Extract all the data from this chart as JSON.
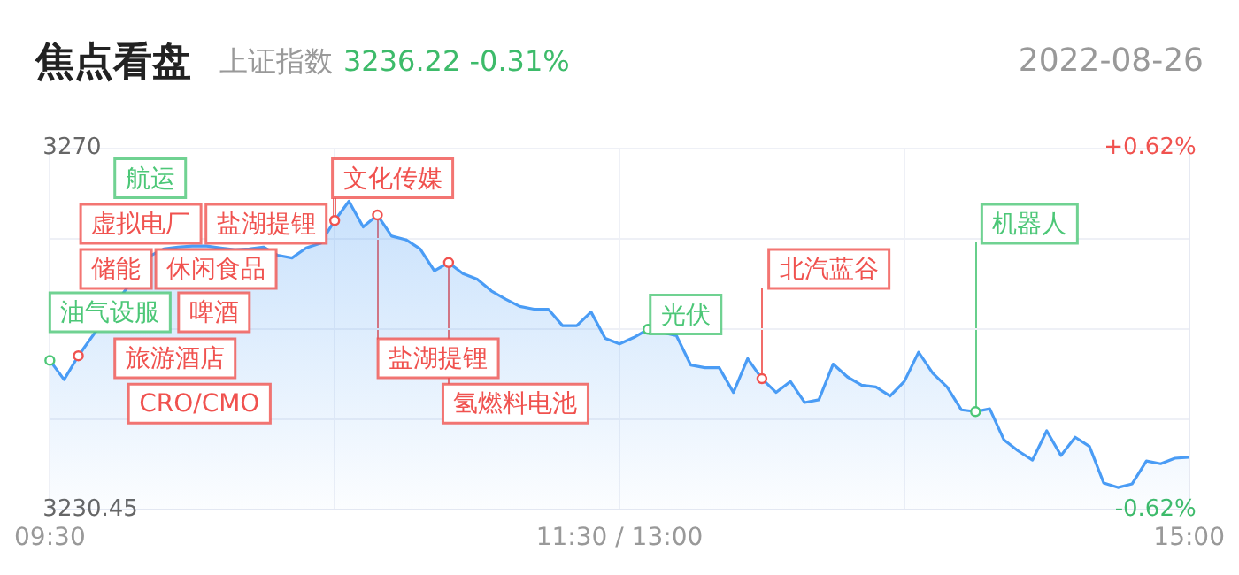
{
  "chart_data": {
    "type": "area",
    "title": "焦点看盘",
    "subtitle": "上证指数",
    "annotations": [
      "3236.22 -0.31%",
      "2022-08-26",
      "航运",
      "虚拟电厂",
      "盐湖提锂",
      "储能",
      "休闲食品",
      "啤酒",
      "旅游酒店",
      "CRO/CMO",
      "油气设服",
      "文化传媒",
      "盐湖提锂",
      "氢燃料电池",
      "光伏",
      "北汽蓝谷",
      "机器人"
    ],
    "categories": [
      "09:30",
      null,
      null,
      null,
      null,
      null,
      null,
      null,
      null,
      null,
      null,
      null,
      null,
      null,
      null,
      null,
      null,
      null,
      null,
      null,
      null,
      null,
      null,
      null,
      null,
      null,
      null,
      null,
      null,
      null,
      null,
      null,
      null,
      null,
      null,
      null,
      null,
      null,
      null,
      null,
      "11:30 / 13:00",
      null,
      null,
      null,
      null,
      null,
      null,
      null,
      null,
      null,
      null,
      null,
      null,
      null,
      null,
      null,
      null,
      null,
      null,
      null,
      null,
      null,
      null,
      null,
      null,
      null,
      null,
      null,
      null,
      null,
      null,
      null,
      null,
      null,
      null,
      null,
      null,
      null,
      null,
      null,
      "15:00"
    ],
    "series": [
      {
        "color": "#4a9cf5",
        "values": [
          3246.8,
          3244.7,
          3247.3,
          null,
          null,
          null,
          null,
          3258.2,
          3259.0,
          3259.2,
          3259.3,
          3259.3,
          3259.1,
          3258.9,
          3259.0,
          3259.2,
          3258.3,
          3258.0,
          3259.1,
          3259.6,
          3262.1,
          3264.2,
          3261.4,
          3262.7,
          3260.4,
          3260.0,
          3259.0,
          3256.6,
          3257.5,
          3256.3,
          3255.7,
          3254.4,
          3253.5,
          3252.7,
          3252.4,
          3252.4,
          3250.6,
          3250.6,
          3252.1,
          3249.2,
          3248.6,
          3249.3,
          3250.2,
          null,
          3249.5,
          3246.3,
          3246.0,
          3246.0,
          3243.3,
          3247.0,
          3244.8,
          3243.3,
          3244.5,
          3242.2,
          3242.5,
          3246.4,
          3245.0,
          3244.1,
          3243.9,
          3242.9,
          3244.5,
          3247.7,
          3245.4,
          3243.9,
          3241.4,
          3241.2,
          3241.5,
          3238.1,
          3236.9,
          3235.9,
          3239.1,
          3236.4,
          3238.4,
          3237.4,
          3233.4,
          3232.9,
          3233.3,
          3235.8,
          3235.5,
          3236.1,
          3236.2
        ]
      },
      {
        "type": "scatter",
        "marker": "circle",
        "color": "#f0524f",
        "values": [
          null,
          null,
          3247.3,
          null,
          null,
          null,
          null,
          null,
          null,
          null,
          null,
          null,
          null,
          null,
          null,
          null,
          null,
          null,
          null,
          null,
          3262.1,
          null,
          null,
          3262.7,
          null,
          null,
          null,
          null,
          3257.5,
          null,
          null,
          null,
          null,
          null,
          null,
          null,
          null,
          null,
          null,
          null,
          null,
          null,
          null,
          null,
          null,
          null,
          null,
          null,
          null,
          null,
          3244.8,
          null,
          null,
          null,
          null,
          null,
          null,
          null,
          null,
          null,
          null,
          null,
          null,
          null,
          null,
          null,
          null,
          null,
          null,
          null,
          null,
          null,
          null,
          null,
          null,
          null,
          null,
          null,
          null,
          null,
          null
        ]
      },
      {
        "type": "scatter",
        "marker": "circle",
        "color": "#4cc777",
        "values": [
          3246.8,
          null,
          null,
          null,
          null,
          null,
          null,
          null,
          null,
          null,
          null,
          null,
          null,
          null,
          null,
          null,
          null,
          null,
          null,
          null,
          null,
          null,
          null,
          null,
          null,
          null,
          null,
          null,
          null,
          null,
          null,
          null,
          null,
          null,
          null,
          null,
          null,
          null,
          null,
          null,
          null,
          null,
          3250.2,
          null,
          null,
          null,
          null,
          null,
          null,
          null,
          null,
          null,
          null,
          null,
          null,
          null,
          null,
          null,
          null,
          null,
          null,
          null,
          null,
          null,
          null,
          3241.2,
          null,
          null,
          null,
          null,
          null,
          null,
          null,
          null,
          null,
          null,
          null,
          null,
          null,
          null,
          null
        ]
      }
    ],
    "ylim": [
      3230.45,
      3270
    ],
    "yticks": [
      {
        "value": 3270,
        "label": "3270"
      },
      3230.45
    ],
    "y2lim": [
      -0.62,
      0.62
    ],
    "y2ticks": [
      {
        "value": 0.62,
        "label": "+0.62%"
      },
      {
        "value": 0.31,
        "label": null
      },
      {
        "value": 0,
        "label": null
      },
      {
        "value": -0.31,
        "label": null
      },
      {
        "value": -0.62,
        "label": "-0.62%"
      }
    ],
    "grid": true,
    "legend": false,
    "marker": "none"
  }
}
